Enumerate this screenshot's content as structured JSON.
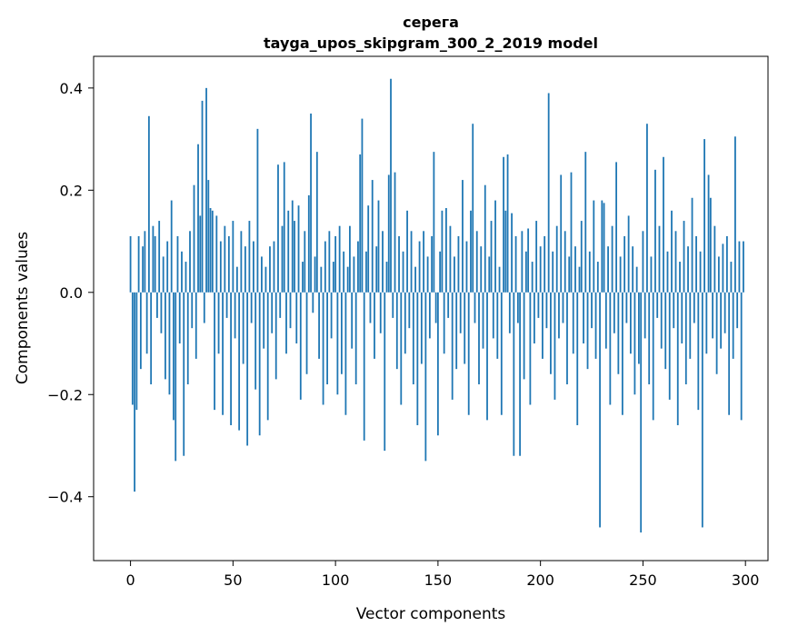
{
  "figure": {
    "bg": "#ffffff",
    "bar_color": "#1f77b4",
    "spine_color": "#000000"
  },
  "chart_data": {
    "type": "bar",
    "title": "серега",
    "subtitle": "tayga_upos_skipgram_300_2_2019 model",
    "xlabel": "Vector components",
    "ylabel": "Components values",
    "xlim": [
      -18,
      311
    ],
    "ylim": [
      -0.525,
      0.462
    ],
    "xticks": [
      0,
      50,
      100,
      150,
      200,
      250,
      300
    ],
    "yticks": [
      -0.4,
      -0.2,
      0.0,
      0.2,
      0.4
    ],
    "grid": false,
    "legend": "none",
    "x_start": 0,
    "values": [
      0.11,
      -0.22,
      -0.39,
      -0.23,
      0.11,
      -0.15,
      0.09,
      0.12,
      -0.12,
      0.345,
      -0.18,
      0.13,
      0.11,
      -0.05,
      0.14,
      -0.08,
      0.07,
      -0.17,
      0.1,
      -0.2,
      0.18,
      -0.25,
      -0.33,
      0.11,
      -0.1,
      0.08,
      -0.32,
      0.06,
      -0.18,
      0.12,
      -0.07,
      0.21,
      -0.13,
      0.29,
      0.15,
      0.375,
      -0.06,
      0.4,
      0.22,
      0.165,
      0.16,
      -0.23,
      0.15,
      -0.12,
      0.1,
      -0.24,
      0.13,
      -0.05,
      0.11,
      -0.26,
      0.14,
      -0.09,
      0.05,
      -0.27,
      0.12,
      -0.14,
      0.09,
      -0.3,
      0.14,
      -0.06,
      0.1,
      -0.19,
      0.32,
      -0.28,
      0.07,
      -0.11,
      0.05,
      -0.25,
      0.09,
      -0.08,
      0.1,
      -0.17,
      0.25,
      -0.05,
      0.13,
      0.255,
      -0.12,
      0.16,
      -0.07,
      0.18,
      0.14,
      -0.1,
      0.17,
      -0.21,
      0.06,
      0.12,
      -0.16,
      0.19,
      0.35,
      -0.04,
      0.07,
      0.275,
      -0.13,
      0.05,
      -0.22,
      0.1,
      -0.18,
      0.12,
      -0.09,
      0.06,
      0.11,
      -0.2,
      0.13,
      -0.16,
      0.08,
      -0.24,
      0.05,
      0.13,
      -0.11,
      0.07,
      -0.18,
      0.1,
      0.27,
      0.34,
      -0.29,
      0.08,
      0.17,
      -0.06,
      0.22,
      -0.13,
      0.09,
      0.18,
      -0.08,
      0.12,
      -0.31,
      0.06,
      0.23,
      0.418,
      -0.05,
      0.235,
      -0.15,
      0.11,
      -0.22,
      0.08,
      -0.12,
      0.16,
      -0.07,
      0.12,
      -0.18,
      0.05,
      -0.26,
      0.1,
      -0.14,
      0.12,
      -0.33,
      0.07,
      -0.09,
      0.11,
      0.275,
      -0.06,
      -0.28,
      0.08,
      0.16,
      -0.12,
      0.165,
      -0.05,
      0.13,
      -0.21,
      0.07,
      -0.15,
      0.11,
      -0.08,
      0.22,
      -0.14,
      0.1,
      -0.24,
      0.16,
      0.33,
      -0.06,
      0.12,
      -0.18,
      0.09,
      -0.11,
      0.21,
      -0.25,
      0.07,
      0.14,
      -0.09,
      0.18,
      -0.13,
      0.05,
      -0.24,
      0.265,
      0.16,
      0.27,
      -0.08,
      0.155,
      -0.32,
      0.11,
      -0.06,
      -0.32,
      0.12,
      -0.17,
      0.08,
      0.125,
      -0.22,
      0.06,
      -0.1,
      0.14,
      -0.05,
      0.09,
      -0.13,
      0.11,
      -0.07,
      0.39,
      -0.16,
      0.08,
      -0.21,
      0.13,
      -0.09,
      0.23,
      -0.06,
      0.12,
      -0.18,
      0.07,
      0.235,
      -0.12,
      0.09,
      -0.26,
      0.05,
      0.14,
      -0.1,
      0.275,
      -0.15,
      0.08,
      -0.07,
      0.18,
      -0.13,
      0.06,
      -0.46,
      0.18,
      0.175,
      -0.11,
      0.09,
      -0.22,
      0.13,
      -0.08,
      0.255,
      -0.16,
      0.07,
      -0.24,
      0.11,
      -0.06,
      0.15,
      -0.12,
      0.09,
      -0.2,
      0.05,
      -0.14,
      -0.47,
      0.12,
      -0.09,
      0.33,
      -0.18,
      0.07,
      -0.25,
      0.24,
      -0.05,
      0.13,
      -0.11,
      0.265,
      -0.15,
      0.08,
      -0.21,
      0.16,
      -0.07,
      0.12,
      -0.26,
      0.06,
      -0.1,
      0.14,
      -0.18,
      0.09,
      -0.13,
      0.185,
      -0.06,
      0.11,
      -0.23,
      0.08,
      -0.46,
      0.3,
      -0.12,
      0.23,
      0.185,
      -0.09,
      0.13,
      -0.16,
      0.07,
      -0.11,
      0.095,
      -0.08,
      0.11,
      -0.24,
      0.06,
      -0.13,
      0.305,
      -0.07,
      0.1,
      -0.25,
      0.1
    ]
  }
}
